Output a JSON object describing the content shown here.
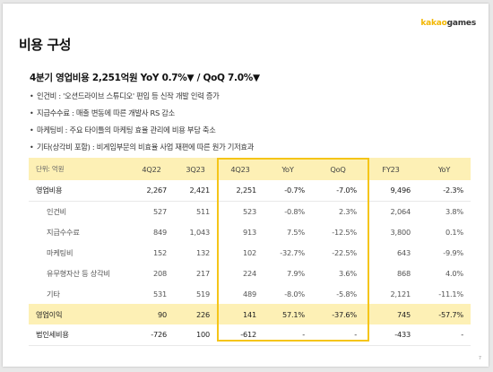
{
  "logo": {
    "brand": "kakao",
    "product": "games"
  },
  "page": {
    "title": "비용 구성",
    "page_number": "7"
  },
  "summary": {
    "headline": "4분기 영업비용 2,251억원 YoY 0.7%▼ / QoQ 7.0%▼",
    "bullets": [
      "인건비 : '오션드라이브 스튜디오' 편입 등 신작 개발 인력 증가",
      "지급수수료 : 매출 변동에 따른 개발사 RS 감소",
      "마케팅비 : 주요 타이틀의 마케팅 효율 관리에 비용 부담 축소",
      "기타(상각비 포함) : 비게임부문의 비효율 사업 재편에 따른 원가 기저효과"
    ]
  },
  "table": {
    "unit_label": "단위: 억원",
    "columns": [
      "4Q22",
      "3Q23",
      "4Q23",
      "YoY",
      "QoQ",
      "FY23",
      "YoY"
    ],
    "rows": [
      {
        "label": "영업비용",
        "values": [
          "2,267",
          "2,421",
          "2,251",
          "-0.7%",
          "-7.0%",
          "9,496",
          "-2.3%"
        ]
      },
      {
        "label": "인건비",
        "values": [
          "527",
          "511",
          "523",
          "-0.8%",
          "2.3%",
          "2,064",
          "3.8%"
        ]
      },
      {
        "label": "지급수수료",
        "values": [
          "849",
          "1,043",
          "913",
          "7.5%",
          "-12.5%",
          "3,800",
          "0.1%"
        ]
      },
      {
        "label": "마케팅비",
        "values": [
          "152",
          "132",
          "102",
          "-32.7%",
          "-22.5%",
          "643",
          "-9.9%"
        ]
      },
      {
        "label": "유무형자산 등 상각비",
        "values": [
          "208",
          "217",
          "224",
          "7.9%",
          "3.6%",
          "868",
          "4.0%"
        ]
      },
      {
        "label": "기타",
        "values": [
          "531",
          "519",
          "489",
          "-8.0%",
          "-5.8%",
          "2,121",
          "-11.1%"
        ]
      },
      {
        "label": "영업이익",
        "values": [
          "90",
          "226",
          "141",
          "57.1%",
          "-37.6%",
          "745",
          "-57.7%"
        ]
      },
      {
        "label": "법인세비용",
        "values": [
          "-726",
          "100",
          "-612",
          "-",
          "-",
          "-433",
          "-"
        ]
      }
    ]
  },
  "colors": {
    "accent": "#f5c518",
    "header_fill": "#fdf0b5"
  }
}
